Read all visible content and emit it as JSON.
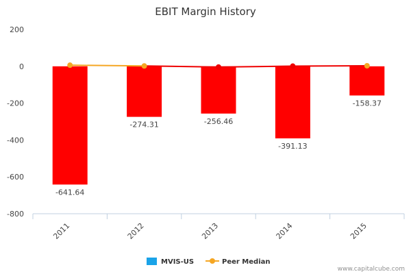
{
  "chart_data": {
    "type": "bar",
    "title": "EBIT Margin History",
    "categories": [
      "2011",
      "2012",
      "2013",
      "2014",
      "2015"
    ],
    "ylim": [
      -800,
      200
    ],
    "yticks": [
      200,
      0,
      -200,
      -400,
      -600,
      -800
    ],
    "grid": false,
    "legend_position": "bottom",
    "series": [
      {
        "name": "MVIS-US",
        "type": "bar",
        "legend_color": "#1aa3e8",
        "bar_color": "#ff0000",
        "values": [
          -641.64,
          -274.31,
          -256.46,
          -391.13,
          -158.37
        ],
        "data_labels": [
          "-641.64",
          "-274.31",
          "-256.46",
          "-391.13",
          "-158.37"
        ]
      },
      {
        "name": "Peer Median",
        "type": "line",
        "color": "#f5a623",
        "values": [
          6,
          2,
          -4,
          1,
          3
        ],
        "marker_colors": [
          "#f5a623",
          "#f5a623",
          "#ee0000",
          "#ee0000",
          "#f5a623"
        ]
      }
    ]
  },
  "credit": "www.capitalcube.com"
}
